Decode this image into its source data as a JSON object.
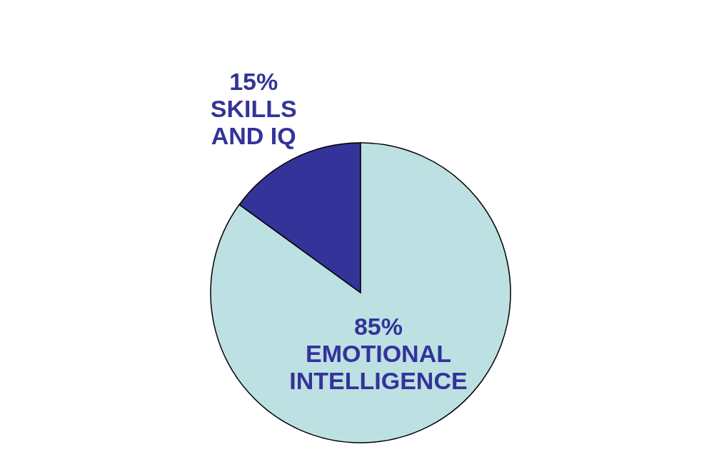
{
  "chart_data": {
    "type": "pie",
    "categories": [
      "SKILLS AND IQ",
      "EMOTIONAL INTELLIGENCE"
    ],
    "values": [
      15,
      85
    ],
    "colors": [
      "#333399",
      "#bde0e3"
    ],
    "value_labels": [
      "15%",
      "85%"
    ],
    "legend": false
  }
}
